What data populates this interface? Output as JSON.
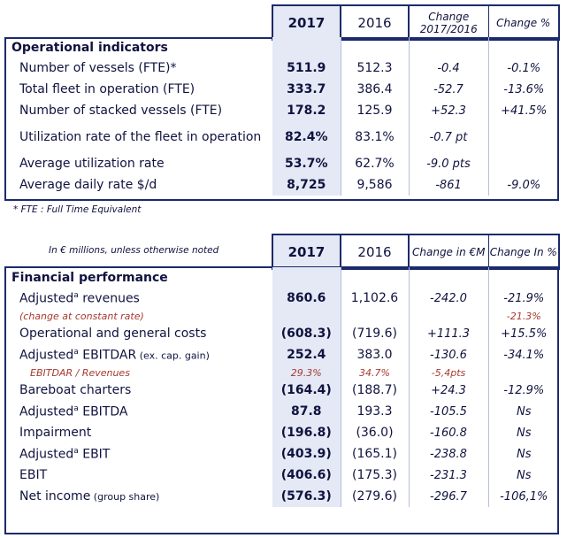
{
  "table1": {
    "headers": [
      "",
      "2017",
      "2016",
      "Change 2017/2016",
      "Change %"
    ],
    "section_title": "Operational indicators",
    "rows": [
      {
        "label": "Number of vessels (FTE)*",
        "y2017": "511.9",
        "y2016": "512.3",
        "change": "-0.4",
        "pct": "-0.1%"
      },
      {
        "label": "Total fleet in operation (FTE)",
        "y2017": "333.7",
        "y2016": "386.4",
        "change": "-52.7",
        "pct": "-13.6%"
      },
      {
        "label": "Number of stacked vessels (FTE)",
        "y2017": "178.2",
        "y2016": "125.9",
        "change": "+52.3",
        "pct": "+41.5%"
      },
      {
        "label": "Utilization rate of the fleet in operation",
        "y2017": "82.4%",
        "y2016": "83.1%",
        "change": "-0.7 pt",
        "pct": ""
      },
      {
        "label": "Average utilization rate",
        "y2017": "53.7%",
        "y2016": "62.7%",
        "change": "-9.0 pts",
        "pct": ""
      },
      {
        "label": "Average daily rate $/d",
        "y2017": "8,725",
        "y2016": "9,586",
        "change": "-861",
        "pct": "-9.0%"
      }
    ],
    "footnote": "* FTE : Full Time Equivalent"
  },
  "table2": {
    "unit_note": "In € millions, unless otherwise noted",
    "headers": [
      "",
      "2017",
      "2016",
      "Change in €M",
      "Change In %"
    ],
    "section_title": "Financial performance",
    "rows": [
      {
        "label": "Adjusted",
        "sup": "a",
        "label_suffix": " revenues",
        "y2017": "860.6",
        "y2016": "1,102.6",
        "change": "-242.0",
        "pct": "-21.9%"
      },
      {
        "label": "(change at constant rate)",
        "y2017": "",
        "y2016": "",
        "change": "",
        "pct": "-21.3%",
        "sub": true
      },
      {
        "label": "Operational and general costs",
        "y2017": "(608.3)",
        "y2016": "(719.6)",
        "change": "+111.3",
        "pct": "+15.5%"
      },
      {
        "label": "Adjusted",
        "sup": "a",
        "label_suffix": " EBITDAR",
        "label_small": " (ex. cap. gain)",
        "y2017": "252.4",
        "y2016": "383.0",
        "change": "-130.6",
        "pct": "-34.1%"
      },
      {
        "label": "EBITDAR / Revenues",
        "y2017": "29.3%",
        "y2016": "34.7%",
        "change": "-5,4pts",
        "pct": "",
        "sub": true,
        "sub_all": true
      },
      {
        "label": "Bareboat charters",
        "y2017": "(164.4)",
        "y2016": "(188.7)",
        "change": "+24.3",
        "pct": "-12.9%"
      },
      {
        "label": "Adjusted",
        "sup": "a",
        "label_suffix": " EBITDA",
        "y2017": "87.8",
        "y2016": "193.3",
        "change": "-105.5",
        "pct": "Ns"
      },
      {
        "label": "Impairment",
        "y2017": "(196.8)",
        "y2016": "(36.0)",
        "change": "-160.8",
        "pct": "Ns"
      },
      {
        "label": "Adjusted",
        "sup": "a",
        "label_suffix": " EBIT",
        "y2017": "(403.9)",
        "y2016": "(165.1)",
        "change": "-238.8",
        "pct": "Ns"
      },
      {
        "label": "EBIT",
        "y2017": "(406.6)",
        "y2016": "(175.3)",
        "change": "-231.3",
        "pct": "Ns"
      },
      {
        "label": "Net income",
        "label_small": " (group share)",
        "y2017": "(576.3)",
        "y2016": "(279.6)",
        "change": "-296.7",
        "pct": "-106,1%"
      }
    ]
  }
}
